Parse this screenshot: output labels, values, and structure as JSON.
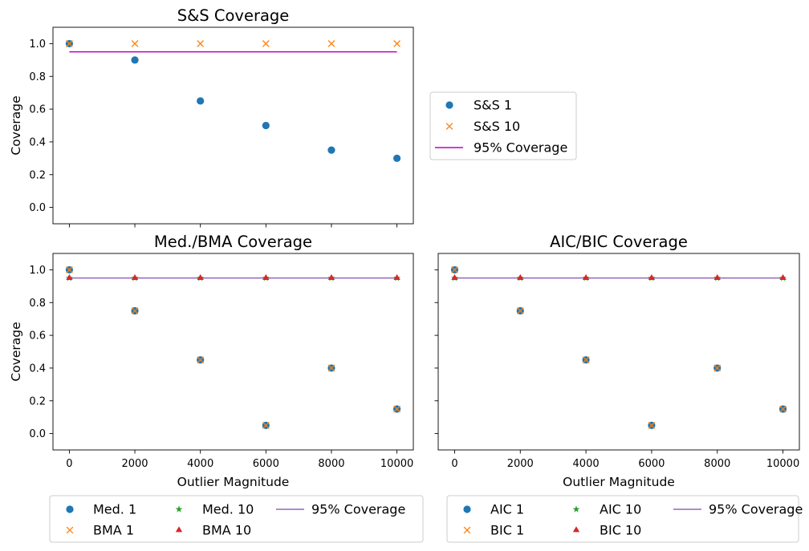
{
  "chart_data": [
    {
      "type": "scatter",
      "title": "S&S Coverage",
      "xlabel": "",
      "ylabel": "Coverage",
      "xlim": [
        -500,
        10500
      ],
      "ylim": [
        -0.1,
        1.1
      ],
      "xticks": [
        0,
        2000,
        4000,
        6000,
        8000,
        10000
      ],
      "xtick_labels_visible": false,
      "yticks": [
        0.0,
        0.2,
        0.4,
        0.6,
        0.8,
        1.0
      ],
      "ytick_labels": [
        "0.0",
        "0.2",
        "0.4",
        "0.6",
        "0.8",
        "1.0"
      ],
      "x": [
        0,
        2000,
        4000,
        6000,
        8000,
        10000
      ],
      "series": [
        {
          "name": "S&S 1",
          "marker": "circle",
          "color": "#1f77b4",
          "values": [
            1.0,
            0.9,
            0.65,
            0.5,
            0.35,
            0.3
          ]
        },
        {
          "name": "S&S 10",
          "marker": "x",
          "color": "#ff7f0e",
          "values": [
            1.0,
            1.0,
            1.0,
            1.0,
            1.0,
            1.0
          ]
        }
      ],
      "reference_line": {
        "name": "95% Coverage",
        "value": 0.95,
        "color": "#bf00bf",
        "x_range": [
          0,
          10000
        ]
      },
      "legend": {
        "placement": "right-outside",
        "entries": [
          "S&S 1",
          "S&S 10",
          "95% Coverage"
        ]
      }
    },
    {
      "type": "scatter",
      "title": "Med./BMA Coverage",
      "xlabel": "Outlier Magnitude",
      "ylabel": "Coverage",
      "xlim": [
        -500,
        10500
      ],
      "ylim": [
        -0.1,
        1.1
      ],
      "xticks": [
        0,
        2000,
        4000,
        6000,
        8000,
        10000
      ],
      "xtick_labels": [
        "0",
        "2000",
        "4000",
        "6000",
        "8000",
        "10000"
      ],
      "xtick_labels_visible": true,
      "yticks": [
        0.0,
        0.2,
        0.4,
        0.6,
        0.8,
        1.0
      ],
      "ytick_labels": [
        "0.0",
        "0.2",
        "0.4",
        "0.6",
        "0.8",
        "1.0"
      ],
      "x": [
        0,
        2000,
        4000,
        6000,
        8000,
        10000
      ],
      "series": [
        {
          "name": "Med. 1",
          "marker": "circle",
          "color": "#1f77b4",
          "values": [
            1.0,
            0.75,
            0.45,
            0.05,
            0.4,
            0.15
          ]
        },
        {
          "name": "BMA 1",
          "marker": "x",
          "color": "#ff7f0e",
          "values": [
            1.0,
            0.75,
            0.45,
            0.05,
            0.4,
            0.15
          ]
        },
        {
          "name": "Med. 10",
          "marker": "star",
          "color": "#2ca02c",
          "values": [
            0.95,
            0.95,
            0.95,
            0.95,
            0.95,
            0.95
          ]
        },
        {
          "name": "BMA 10",
          "marker": "triangle",
          "color": "#d62728",
          "values": [
            0.95,
            0.95,
            0.95,
            0.95,
            0.95,
            0.95
          ]
        }
      ],
      "reference_line": {
        "name": "95% Coverage",
        "value": 0.95,
        "color": "#9467bd",
        "x_range": [
          0,
          10000
        ]
      },
      "legend": {
        "placement": "bottom-outside",
        "columns": 3,
        "entries": [
          "Med. 1",
          "BMA 1",
          "Med. 10",
          "BMA 10",
          "95% Coverage"
        ]
      }
    },
    {
      "type": "scatter",
      "title": "AIC/BIC Coverage",
      "xlabel": "Outlier Magnitude",
      "ylabel": "",
      "xlim": [
        -500,
        10500
      ],
      "ylim": [
        -0.1,
        1.1
      ],
      "xticks": [
        0,
        2000,
        4000,
        6000,
        8000,
        10000
      ],
      "xtick_labels": [
        "0",
        "2000",
        "4000",
        "6000",
        "8000",
        "10000"
      ],
      "xtick_labels_visible": true,
      "yticks": [
        0.0,
        0.2,
        0.4,
        0.6,
        0.8,
        1.0
      ],
      "ytick_labels_visible": false,
      "x": [
        0,
        2000,
        4000,
        6000,
        8000,
        10000
      ],
      "series": [
        {
          "name": "AIC 1",
          "marker": "circle",
          "color": "#1f77b4",
          "values": [
            1.0,
            0.75,
            0.45,
            0.05,
            0.4,
            0.15
          ]
        },
        {
          "name": "BIC 1",
          "marker": "x",
          "color": "#ff7f0e",
          "values": [
            1.0,
            0.75,
            0.45,
            0.05,
            0.4,
            0.15
          ]
        },
        {
          "name": "AIC 10",
          "marker": "star",
          "color": "#2ca02c",
          "values": [
            0.95,
            0.95,
            0.95,
            0.95,
            0.95,
            0.95
          ]
        },
        {
          "name": "BIC 10",
          "marker": "triangle",
          "color": "#d62728",
          "values": [
            0.95,
            0.95,
            0.95,
            0.95,
            0.95,
            0.95
          ]
        }
      ],
      "reference_line": {
        "name": "95% Coverage",
        "value": 0.95,
        "color": "#9467bd",
        "x_range": [
          0,
          10000
        ]
      },
      "legend": {
        "placement": "bottom-outside",
        "columns": 3,
        "entries": [
          "AIC 1",
          "BIC 1",
          "AIC 10",
          "BIC 10",
          "95% Coverage"
        ]
      }
    }
  ]
}
